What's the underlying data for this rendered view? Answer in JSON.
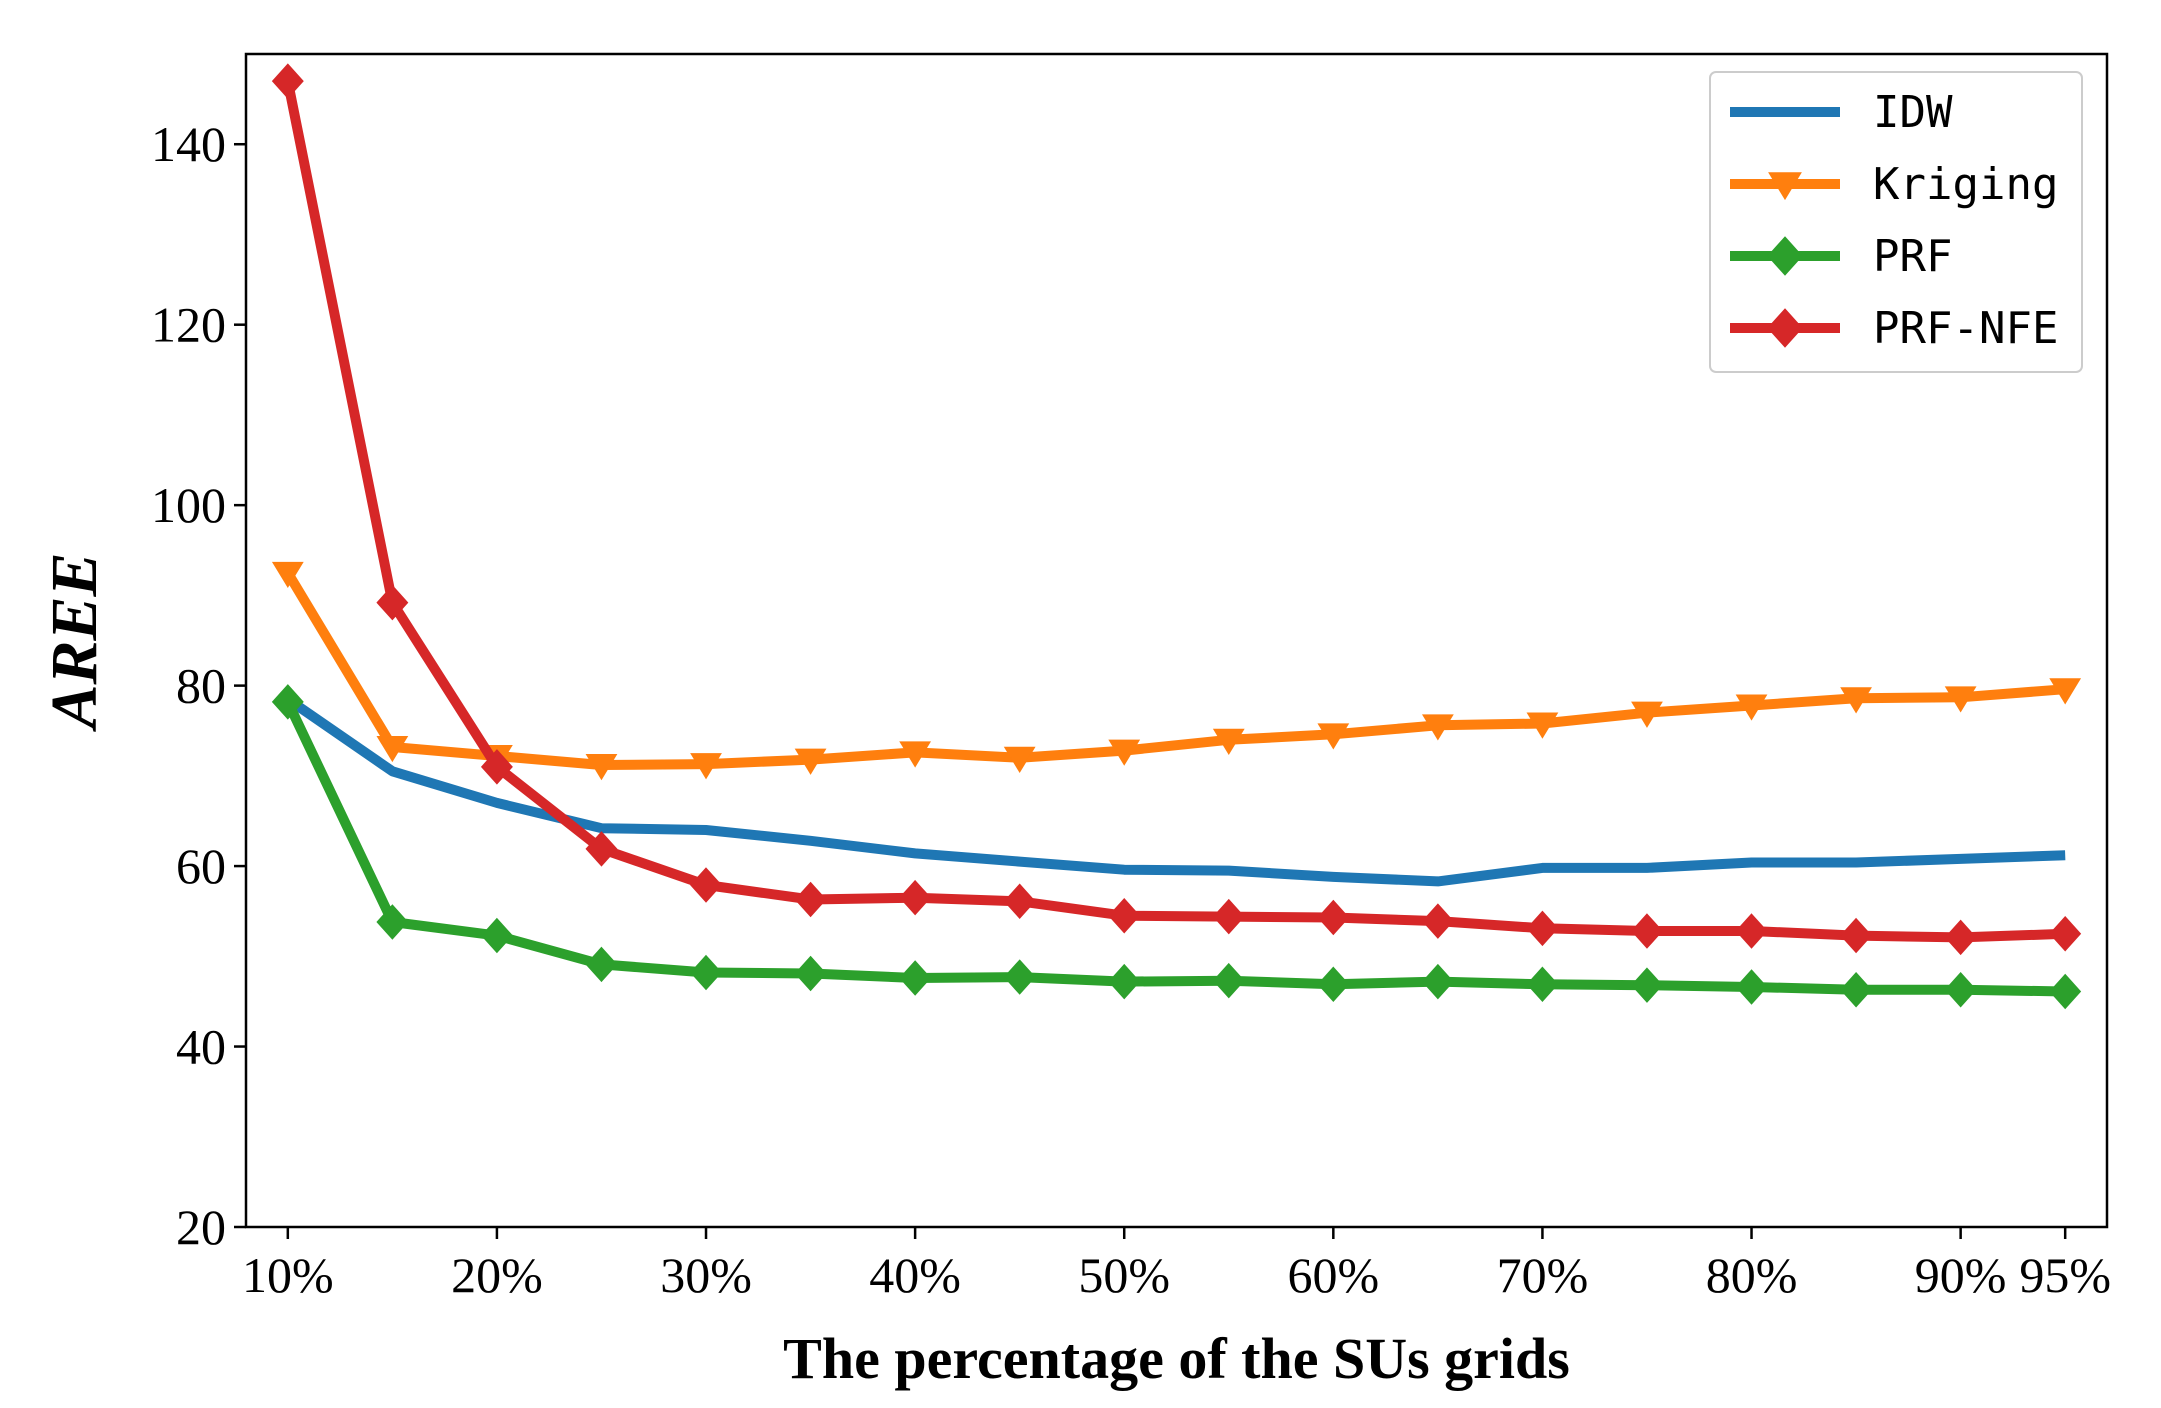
{
  "chart_data": {
    "type": "line",
    "title": "",
    "xlabel": "The percentage of the SUs grids",
    "ylabel": "AREE",
    "categories": [
      "10%",
      "15%",
      "20%",
      "25%",
      "30%",
      "35%",
      "40%",
      "45%",
      "50%",
      "55%",
      "60%",
      "65%",
      "70%",
      "75%",
      "80%",
      "85%",
      "90%",
      "95%"
    ],
    "xtick_labels": [
      "10%",
      "20%",
      "30%",
      "40%",
      "50%",
      "60%",
      "70%",
      "80%",
      "90%",
      "95%"
    ],
    "xtick_values": [
      10,
      20,
      30,
      40,
      50,
      60,
      70,
      80,
      90,
      95
    ],
    "x": [
      10,
      15,
      20,
      25,
      30,
      35,
      40,
      45,
      50,
      55,
      60,
      65,
      70,
      75,
      80,
      85,
      90,
      95
    ],
    "xlim": [
      8,
      97
    ],
    "ylim": [
      20,
      150
    ],
    "yticks": [
      20,
      40,
      60,
      80,
      100,
      120,
      140
    ],
    "ytick_labels": [
      "20",
      "40",
      "60",
      "80",
      "100",
      "120",
      "140"
    ],
    "grid": false,
    "legend_position": "top-right",
    "series": [
      {
        "name": "IDW",
        "color": "#1f77b4",
        "marker": "none",
        "values": [
          78.5,
          70.5,
          67.0,
          64.2,
          64.0,
          62.8,
          61.4,
          60.5,
          59.6,
          59.5,
          58.8,
          58.3,
          59.8,
          59.8,
          60.4,
          60.4,
          60.8,
          61.2
        ]
      },
      {
        "name": "Kriging",
        "color": "#ff7f0e",
        "marker": "triangle-down",
        "values": [
          92.5,
          73.2,
          72.2,
          71.2,
          71.3,
          71.8,
          72.6,
          72.0,
          72.8,
          74.0,
          74.6,
          75.6,
          75.8,
          77.0,
          77.8,
          78.6,
          78.7,
          79.6
        ]
      },
      {
        "name": "PRF",
        "color": "#2ca02c",
        "marker": "diamond",
        "values": [
          78.2,
          53.8,
          52.3,
          49.1,
          48.2,
          48.1,
          47.6,
          47.7,
          47.2,
          47.3,
          46.9,
          47.2,
          46.9,
          46.8,
          46.6,
          46.3,
          46.3,
          46.1
        ]
      },
      {
        "name": "PRF-NFE",
        "color": "#d62728",
        "marker": "diamond",
        "values": [
          147.0,
          89.2,
          71.0,
          61.9,
          57.9,
          56.3,
          56.5,
          56.1,
          54.5,
          54.4,
          54.3,
          53.9,
          53.1,
          52.8,
          52.8,
          52.3,
          52.1,
          52.5
        ]
      }
    ]
  }
}
